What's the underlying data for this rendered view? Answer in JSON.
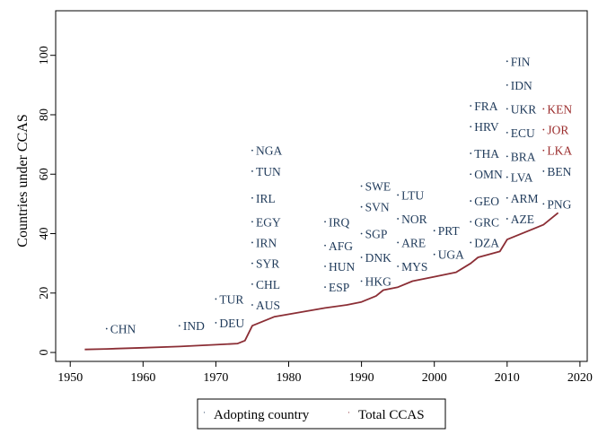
{
  "chart_data": {
    "type": "line",
    "title": "",
    "xlabel": "",
    "ylabel": "Countries under CCAS",
    "xlim": [
      1948,
      2021
    ],
    "ylim": [
      -3,
      115
    ],
    "xticks": [
      1950,
      1960,
      1970,
      1980,
      1990,
      2000,
      2010,
      2020
    ],
    "yticks": [
      0,
      20,
      40,
      60,
      80,
      100
    ],
    "grid": false,
    "colors": {
      "line": "#8b2e35",
      "adopters": "#1f3a5a",
      "highlight": "#9b2c2c",
      "axis": "#000000"
    },
    "series": [
      {
        "name": "Total CCAS",
        "x": [
          1952,
          1955,
          1960,
          1965,
          1970,
          1973,
          1974,
          1975,
          1978,
          1985,
          1988,
          1990,
          1992,
          1993,
          1995,
          1997,
          2000,
          2003,
          2005,
          2006,
          2009,
          2010,
          2015,
          2017
        ],
        "y": [
          1,
          1.2,
          1.6,
          2,
          2.6,
          3,
          4,
          9,
          12,
          15,
          16,
          17,
          19,
          21,
          22,
          24,
          25.5,
          27,
          30,
          32,
          34,
          38,
          43,
          47
        ]
      }
    ],
    "adopters": [
      {
        "code": "CHN",
        "x": 1955,
        "y": 8
      },
      {
        "code": "IND",
        "x": 1965,
        "y": 9
      },
      {
        "code": "DEU",
        "x": 1970,
        "y": 10
      },
      {
        "code": "TUR",
        "x": 1970,
        "y": 18
      },
      {
        "code": "AUS",
        "x": 1975,
        "y": 16
      },
      {
        "code": "CHL",
        "x": 1975,
        "y": 23
      },
      {
        "code": "SYR",
        "x": 1975,
        "y": 30
      },
      {
        "code": "IRN",
        "x": 1975,
        "y": 37
      },
      {
        "code": "EGY",
        "x": 1975,
        "y": 44
      },
      {
        "code": "IRL",
        "x": 1975,
        "y": 52
      },
      {
        "code": "TUN",
        "x": 1975,
        "y": 61
      },
      {
        "code": "NGA",
        "x": 1975,
        "y": 68
      },
      {
        "code": "ESP",
        "x": 1985,
        "y": 22
      },
      {
        "code": "HUN",
        "x": 1985,
        "y": 29
      },
      {
        "code": "AFG",
        "x": 1985,
        "y": 36
      },
      {
        "code": "IRQ",
        "x": 1985,
        "y": 44
      },
      {
        "code": "HKG",
        "x": 1990,
        "y": 24
      },
      {
        "code": "DNK",
        "x": 1990,
        "y": 32
      },
      {
        "code": "SGP",
        "x": 1990,
        "y": 40
      },
      {
        "code": "SVN",
        "x": 1990,
        "y": 49
      },
      {
        "code": "SWE",
        "x": 1990,
        "y": 56
      },
      {
        "code": "MYS",
        "x": 1995,
        "y": 29
      },
      {
        "code": "ARE",
        "x": 1995,
        "y": 37
      },
      {
        "code": "NOR",
        "x": 1995,
        "y": 45
      },
      {
        "code": "LTU",
        "x": 1995,
        "y": 53
      },
      {
        "code": "UGA",
        "x": 2000,
        "y": 33
      },
      {
        "code": "PRT",
        "x": 2000,
        "y": 41
      },
      {
        "code": "DZA",
        "x": 2005,
        "y": 37
      },
      {
        "code": "GRC",
        "x": 2005,
        "y": 44
      },
      {
        "code": "GEO",
        "x": 2005,
        "y": 51
      },
      {
        "code": "OMN",
        "x": 2005,
        "y": 60
      },
      {
        "code": "THA",
        "x": 2005,
        "y": 67
      },
      {
        "code": "HRV",
        "x": 2005,
        "y": 76
      },
      {
        "code": "FRA",
        "x": 2005,
        "y": 83
      },
      {
        "code": "AZE",
        "x": 2010,
        "y": 45
      },
      {
        "code": "ARM",
        "x": 2010,
        "y": 52
      },
      {
        "code": "LVA",
        "x": 2010,
        "y": 59
      },
      {
        "code": "BRA",
        "x": 2010,
        "y": 66
      },
      {
        "code": "ECU",
        "x": 2010,
        "y": 74
      },
      {
        "code": "UKR",
        "x": 2010,
        "y": 82
      },
      {
        "code": "IDN",
        "x": 2010,
        "y": 90
      },
      {
        "code": "FIN",
        "x": 2010,
        "y": 98
      },
      {
        "code": "PNG",
        "x": 2015,
        "y": 50
      },
      {
        "code": "BEN",
        "x": 2015,
        "y": 61
      },
      {
        "code": "LKA",
        "x": 2015,
        "y": 68,
        "highlight": true
      },
      {
        "code": "JOR",
        "x": 2015,
        "y": 75,
        "highlight": true
      },
      {
        "code": "KEN",
        "x": 2015,
        "y": 82,
        "highlight": true
      }
    ],
    "legend": {
      "position": "bottom",
      "items": [
        "Adopting country",
        "Total CCAS"
      ]
    }
  }
}
